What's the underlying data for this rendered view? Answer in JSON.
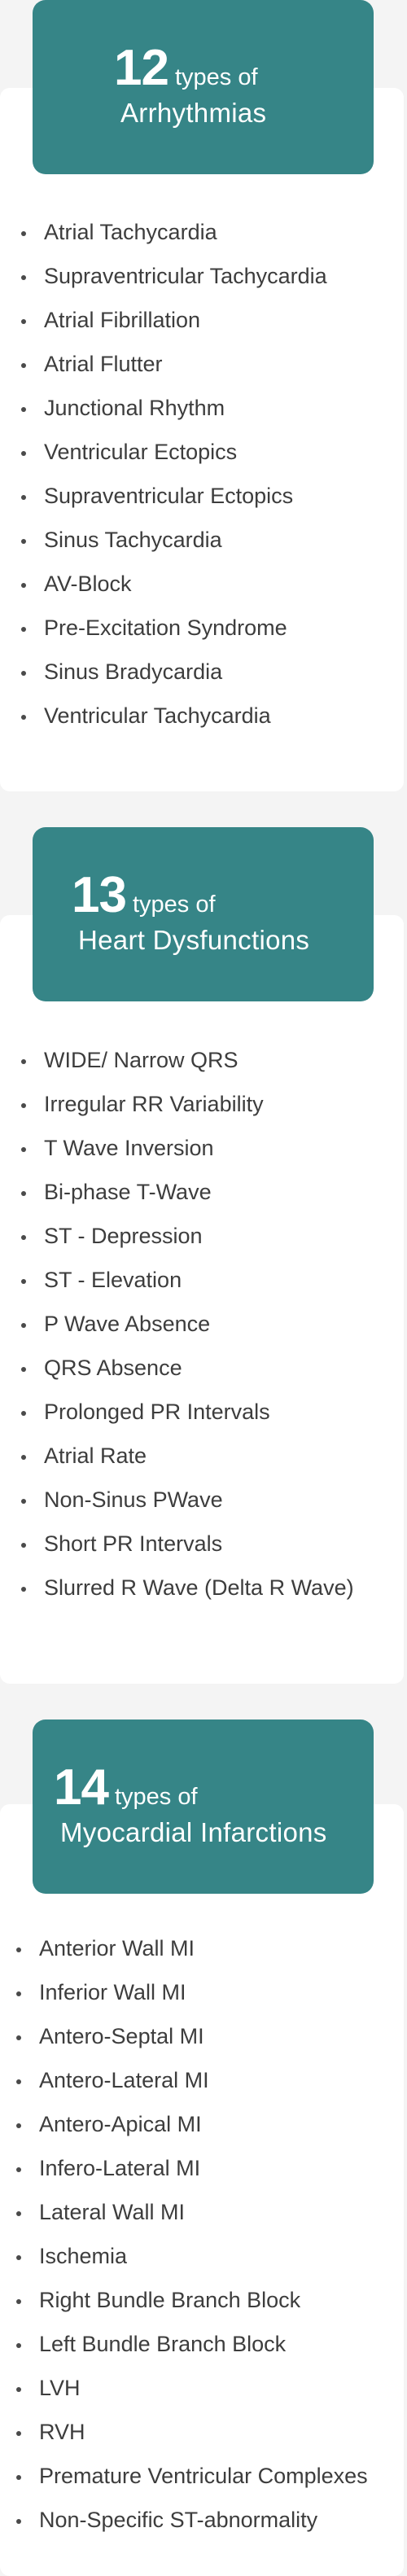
{
  "sections": [
    {
      "number": "12",
      "types_label": "types of",
      "title": "Arrhythmias",
      "items": [
        "Atrial Tachycardia",
        "Supraventricular Tachycardia",
        "Atrial Fibrillation",
        "Atrial Flutter",
        "Junctional Rhythm",
        "Ventricular Ectopics",
        "Supraventricular Ectopics",
        "Sinus Tachycardia",
        "AV-Block",
        "Pre-Excitation Syndrome",
        "Sinus Bradycardia",
        "Ventricular Tachycardia"
      ]
    },
    {
      "number": "13",
      "types_label": "types of",
      "title": "Heart Dysfunctions",
      "items": [
        "WIDE/ Narrow QRS",
        "Irregular RR Variability",
        "T Wave Inversion",
        "Bi-phase T-Wave",
        "ST - Depression",
        "ST - Elevation",
        "P Wave Absence",
        "QRS Absence",
        "Prolonged PR Intervals",
        "Atrial Rate",
        "Non-Sinus PWave",
        "Short PR Intervals",
        "Slurred R Wave (Delta R Wave)"
      ]
    },
    {
      "number": "14",
      "types_label": "types of",
      "title": "Myocardial Infarctions",
      "items": [
        "Anterior Wall MI",
        "Inferior Wall MI",
        "Antero-Septal MI",
        "Antero-Lateral MI",
        "Antero-Apical MI",
        "Infero-Lateral MI",
        "Lateral Wall MI",
        "Ischemia",
        "Right Bundle Branch Block",
        "Left Bundle Branch Block",
        "LVH",
        "RVH",
        "Premature Ventricular Complexes",
        "Non-Specific ST-abnormality"
      ]
    }
  ],
  "colors": {
    "header_bg": "#368587",
    "card_bg": "#ffffff",
    "page_bg": "#f4f4f4",
    "text": "#3d3d3d"
  }
}
